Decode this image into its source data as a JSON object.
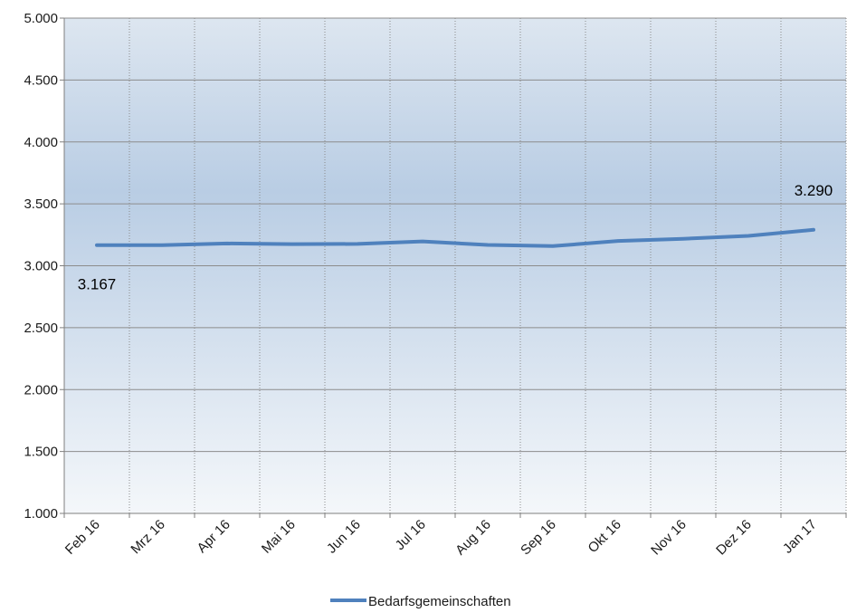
{
  "chart_data": {
    "type": "line",
    "title": "",
    "xlabel": "",
    "ylabel": "",
    "categories": [
      "Feb 16",
      "Mrz 16",
      "Apr 16",
      "Mai 16",
      "Jun 16",
      "Jul 16",
      "Aug 16",
      "Sep 16",
      "Okt 16",
      "Nov 16",
      "Dez 16",
      "Jan 17"
    ],
    "series": [
      {
        "name": "Bedarfsgemeinschaften",
        "color": "#4f81bd",
        "values": [
          3167,
          3167,
          3180,
          3175,
          3176,
          3197,
          3168,
          3159,
          3200,
          3218,
          3241,
          3290
        ]
      }
    ],
    "ylim": [
      1000,
      5000
    ],
    "y_ticks": [
      "1.000",
      "1.500",
      "2.000",
      "2.500",
      "3.000",
      "3.500",
      "4.000",
      "4.500",
      "5.000"
    ],
    "data_labels": [
      {
        "category": "Feb 16",
        "text": "3.167",
        "position": "below"
      },
      {
        "category": "Jan 17",
        "text": "3.290",
        "position": "above"
      }
    ],
    "grid": true,
    "legend_position": "bottom"
  }
}
